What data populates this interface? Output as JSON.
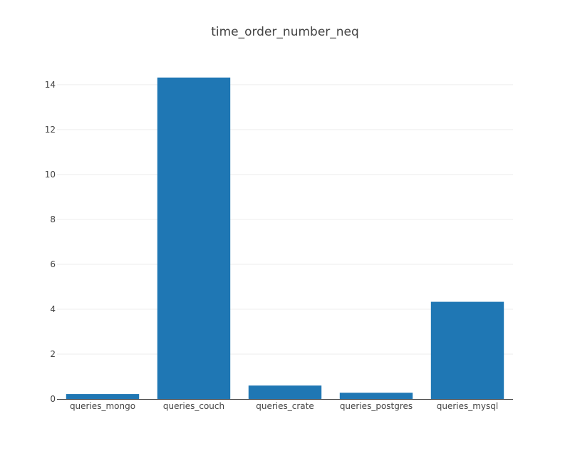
{
  "chart_data": {
    "type": "bar",
    "title": "time_order_number_neq",
    "xlabel": "",
    "ylabel": "",
    "categories": [
      "queries_mongo",
      "queries_couch",
      "queries_crate",
      "queries_postgres",
      "queries_mysql"
    ],
    "values": [
      0.22,
      14.32,
      0.6,
      0.28,
      4.33
    ],
    "ylim": [
      0,
      14.6
    ],
    "yticks": [
      0,
      2,
      4,
      6,
      8,
      10,
      12,
      14
    ],
    "grid": true,
    "bar_color": "#1f77b4"
  }
}
